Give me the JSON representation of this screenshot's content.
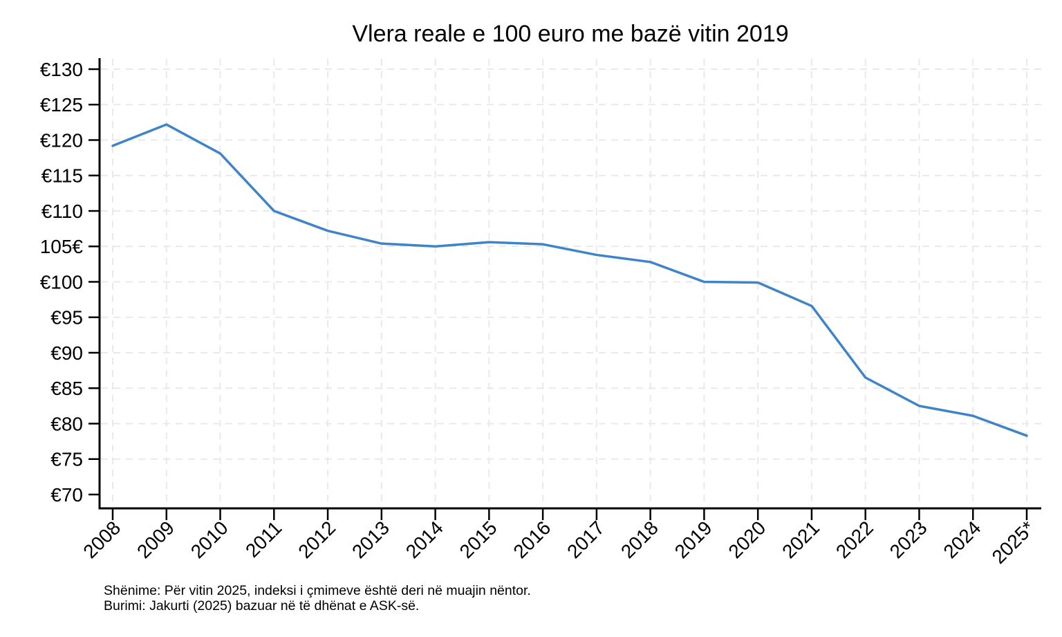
{
  "title": "Vlera reale e 100 euro me bazë vitin 2019",
  "footnotes": {
    "line1": "Shënime: Për vitin 2025, indeksi i çmimeve është deri në muajin nëntor.",
    "line2": "Burimi: Jakurti (2025) bazuar në të dhënat e ASK-së."
  },
  "chart_data": {
    "type": "line",
    "title": "Vlera reale e 100 euro me bazë vitin 2019",
    "categories": [
      "2008",
      "2009",
      "2010",
      "2011",
      "2012",
      "2013",
      "2014",
      "2015",
      "2016",
      "2017",
      "2018",
      "2019",
      "2020",
      "2021",
      "2022",
      "2023",
      "2024",
      "2025*"
    ],
    "values": [
      119.2,
      122.2,
      118.1,
      110.0,
      107.2,
      105.4,
      105.0,
      105.6,
      105.3,
      103.8,
      102.8,
      100.0,
      99.9,
      96.6,
      86.5,
      82.5,
      81.1,
      78.3
    ],
    "xlabel": "",
    "ylabel": "",
    "ylim": [
      70,
      130
    ],
    "y_ticks": [
      {
        "value": 70,
        "label": "€70"
      },
      {
        "value": 75,
        "label": "€75"
      },
      {
        "value": 80,
        "label": "€80"
      },
      {
        "value": 85,
        "label": "€85"
      },
      {
        "value": 90,
        "label": "€90"
      },
      {
        "value": 95,
        "label": "€95"
      },
      {
        "value": 100,
        "label": "€100"
      },
      {
        "value": 105,
        "label": "105€"
      },
      {
        "value": 110,
        "label": "€110"
      },
      {
        "value": 115,
        "label": "€115"
      },
      {
        "value": 120,
        "label": "€120"
      },
      {
        "value": 125,
        "label": "€125"
      },
      {
        "value": 130,
        "label": "€130"
      }
    ],
    "grid": "dashed-both-axes",
    "legend": "none",
    "line_color": "#3f83c8",
    "grid_color": "#e9e9e9",
    "axis_color": "#000000"
  }
}
